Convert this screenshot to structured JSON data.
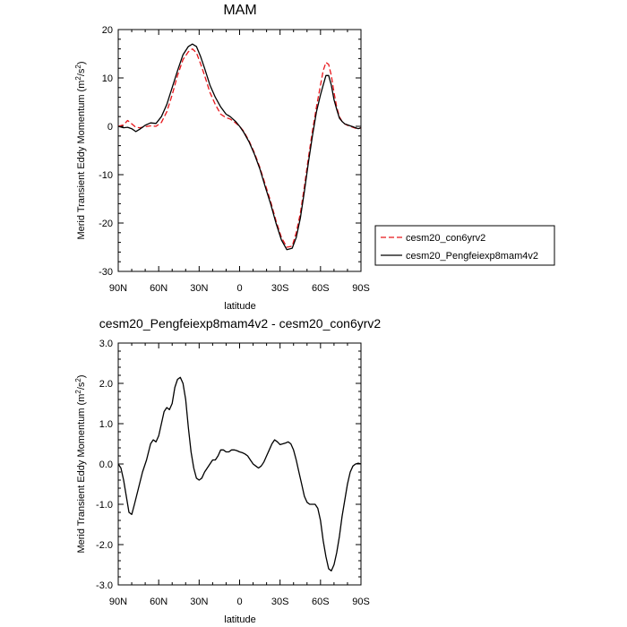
{
  "chart_data": [
    {
      "type": "line",
      "title": "MAM",
      "xlabel": "latitude",
      "ylabel": "Merid Transient Eddy Momentum (m",
      "ylabel_units": {
        "sup1": "2",
        "mid": "/s",
        "sup2": "2",
        "end": ")"
      },
      "xlim": [
        -90,
        90
      ],
      "ylim": [
        -30,
        20
      ],
      "x_ticks": [
        -90,
        -60,
        -30,
        0,
        30,
        60,
        90
      ],
      "x_tick_labels": [
        "90N",
        "60N",
        "30N",
        "0",
        "30S",
        "60S",
        "90S"
      ],
      "y_ticks": [
        -30,
        -20,
        -10,
        0,
        10,
        20
      ],
      "y_tick_labels": [
        "-30",
        "-20",
        "-10",
        "0",
        "10",
        "20"
      ],
      "legend_position": "right",
      "series": [
        {
          "name": "cesm20_con6yrv2",
          "color": "#e8161b",
          "dash": "dashed",
          "x": [
            -90,
            -86,
            -83,
            -80,
            -77,
            -74,
            -70,
            -66,
            -62,
            -58,
            -54,
            -50,
            -46,
            -42,
            -38,
            -35,
            -32,
            -29,
            -26,
            -22,
            -18,
            -14,
            -10,
            -7,
            -3,
            0,
            3,
            7,
            11,
            15,
            19,
            23,
            27,
            31,
            35,
            39,
            42,
            45,
            48,
            51,
            54,
            57,
            60,
            62,
            64,
            66,
            68,
            70,
            72,
            74,
            76,
            78,
            80,
            82,
            84,
            86,
            88,
            90
          ],
          "y": [
            0,
            0.3,
            1.2,
            0.5,
            -0.2,
            -0.3,
            -0.1,
            0.1,
            0.0,
            0.8,
            3.0,
            6.5,
            10.5,
            13.8,
            15.4,
            16.0,
            15.2,
            13.0,
            10.5,
            7.0,
            4.5,
            2.5,
            1.8,
            1.5,
            0.7,
            0.0,
            -1.0,
            -3.0,
            -5.5,
            -8.5,
            -12.0,
            -15.5,
            -19.5,
            -23.0,
            -25.0,
            -24.8,
            -22.0,
            -18.0,
            -12.5,
            -6.5,
            -1.0,
            4.0,
            8.5,
            11.5,
            13.2,
            12.8,
            10.5,
            7.0,
            4.0,
            2.0,
            1.0,
            0.5,
            0.2,
            0.0,
            -0.2,
            -0.4,
            -0.5,
            -0.3
          ]
        },
        {
          "name": "cesm20_Pengfeiexp8mam4v2",
          "color": "#000000",
          "dash": "solid",
          "x": [
            -90,
            -86,
            -83,
            -80,
            -77,
            -74,
            -70,
            -66,
            -62,
            -58,
            -54,
            -50,
            -46,
            -42,
            -38,
            -35,
            -32,
            -29,
            -26,
            -22,
            -18,
            -14,
            -10,
            -7,
            -3,
            0,
            3,
            7,
            11,
            15,
            19,
            23,
            27,
            31,
            35,
            39,
            42,
            45,
            48,
            51,
            54,
            57,
            60,
            62,
            64,
            66,
            68,
            70,
            72,
            74,
            76,
            78,
            80,
            82,
            84,
            86,
            88,
            90
          ],
          "y": [
            0,
            -0.3,
            -0.2,
            -0.5,
            -1.1,
            -0.6,
            0.2,
            0.7,
            0.6,
            2.0,
            4.5,
            8.0,
            11.5,
            14.8,
            16.5,
            17.0,
            16.5,
            14.5,
            12.0,
            8.5,
            6.0,
            4.0,
            2.5,
            2.0,
            1.0,
            0.0,
            -1.2,
            -3.2,
            -5.8,
            -8.8,
            -12.5,
            -16.0,
            -20.0,
            -23.5,
            -25.5,
            -25.2,
            -23.0,
            -19.0,
            -13.5,
            -7.5,
            -2.0,
            3.0,
            6.5,
            8.5,
            10.5,
            10.5,
            8.5,
            5.5,
            3.5,
            1.7,
            1.0,
            0.5,
            0.3,
            0.1,
            -0.1,
            -0.3,
            -0.5,
            -0.3
          ]
        }
      ]
    },
    {
      "type": "line",
      "title": "cesm20_Pengfeiexp8mam4v2 - cesm20_con6yrv2",
      "xlabel": "latitude",
      "ylabel": "Merid Transient Eddy Momentum (m",
      "ylabel_units": {
        "sup1": "2",
        "mid": "/s",
        "sup2": "2",
        "end": ")"
      },
      "xlim": [
        -90,
        90
      ],
      "ylim": [
        -3,
        3
      ],
      "x_ticks": [
        -90,
        -60,
        -30,
        0,
        30,
        60,
        90
      ],
      "x_tick_labels": [
        "90N",
        "60N",
        "30N",
        "0",
        "30S",
        "60S",
        "90S"
      ],
      "y_ticks": [
        -3,
        -2,
        -1,
        0,
        1,
        2,
        3
      ],
      "y_tick_labels": [
        "-3.0",
        "-2.0",
        "-1.0",
        "0.0",
        "1.0",
        "2.0",
        "3.0"
      ],
      "series": [
        {
          "color": "#000000",
          "dash": "solid",
          "x": [
            -90,
            -88,
            -86,
            -84,
            -82,
            -80,
            -78,
            -75,
            -72,
            -69,
            -66,
            -64,
            -62,
            -60,
            -58,
            -56,
            -54,
            -52,
            -50,
            -48,
            -46,
            -44,
            -42,
            -40,
            -38,
            -36,
            -34,
            -32,
            -30,
            -28,
            -26,
            -24,
            -22,
            -20,
            -18,
            -16,
            -14,
            -12,
            -10,
            -8,
            -6,
            -4,
            -2,
            0,
            2,
            4,
            6,
            8,
            10,
            12,
            14,
            16,
            18,
            20,
            22,
            24,
            26,
            28,
            30,
            32,
            34,
            36,
            38,
            40,
            42,
            44,
            46,
            48,
            50,
            52,
            54,
            56,
            58,
            60,
            62,
            64,
            66,
            68,
            70,
            72,
            74,
            76,
            78,
            80,
            82,
            84,
            86,
            88,
            90
          ],
          "y": [
            0.0,
            -0.1,
            -0.4,
            -0.8,
            -1.2,
            -1.25,
            -1.0,
            -0.6,
            -0.2,
            0.1,
            0.5,
            0.6,
            0.55,
            0.7,
            1.0,
            1.3,
            1.4,
            1.35,
            1.5,
            1.9,
            2.1,
            2.15,
            2.0,
            1.6,
            0.9,
            0.3,
            -0.1,
            -0.35,
            -0.4,
            -0.35,
            -0.2,
            -0.1,
            0.0,
            0.1,
            0.1,
            0.2,
            0.35,
            0.35,
            0.3,
            0.3,
            0.35,
            0.35,
            0.33,
            0.3,
            0.28,
            0.25,
            0.2,
            0.1,
            0.0,
            -0.05,
            -0.1,
            -0.05,
            0.05,
            0.2,
            0.35,
            0.5,
            0.6,
            0.55,
            0.48,
            0.5,
            0.52,
            0.55,
            0.5,
            0.35,
            0.1,
            -0.2,
            -0.5,
            -0.8,
            -0.95,
            -1.0,
            -1.0,
            -1.0,
            -1.1,
            -1.4,
            -1.9,
            -2.3,
            -2.6,
            -2.65,
            -2.5,
            -2.2,
            -1.8,
            -1.3,
            -0.9,
            -0.5,
            -0.2,
            -0.05,
            0.0,
            0.02,
            0.0
          ]
        }
      ]
    }
  ]
}
